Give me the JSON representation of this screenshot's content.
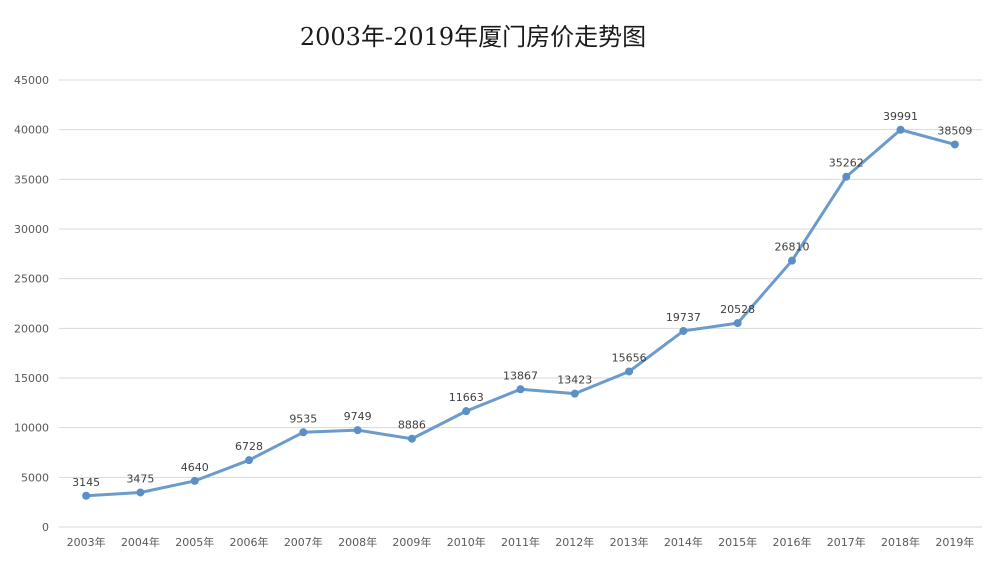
{
  "chart_data": {
    "type": "line",
    "title": "2003年-2019年厦门房价走势图",
    "xlabel": "",
    "ylabel": "",
    "categories": [
      "2003年",
      "2004年",
      "2005年",
      "2006年",
      "2007年",
      "2008年",
      "2009年",
      "2010年",
      "2011年",
      "2012年",
      "2013年",
      "2014年",
      "2015年",
      "2016年",
      "2017年",
      "2018年",
      "2019年"
    ],
    "series": [
      {
        "values": [
          3145,
          3475,
          4640,
          6728,
          9535,
          9749,
          8886,
          11663,
          13867,
          13423,
          15656,
          19737,
          20528,
          26810,
          35262,
          39991,
          38509
        ]
      }
    ],
    "ylim": [
      0,
      45000
    ],
    "yticks": [
      0,
      5000,
      10000,
      15000,
      20000,
      25000,
      30000,
      35000,
      40000,
      45000
    ],
    "grid": true,
    "legend": "none",
    "colors": {
      "line": "#6a9bcb",
      "marker": "#5b8fc5",
      "grid": "#d9d9d9"
    }
  }
}
